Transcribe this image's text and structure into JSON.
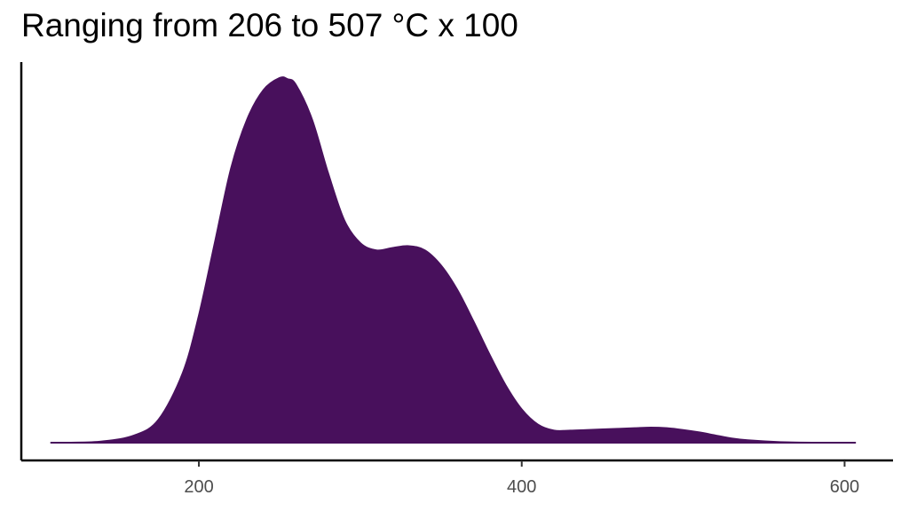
{
  "chart_data": {
    "type": "area",
    "title": "Ranging from 206 to 507 °C x 100",
    "xlabel": "",
    "ylabel": "",
    "xlim": [
      90,
      630
    ],
    "ylim": [
      0,
      0.006
    ],
    "x_ticks": [
      200,
      400,
      600
    ],
    "x_tick_labels": [
      "200",
      "400",
      "600"
    ],
    "grid": false,
    "legend": "none",
    "fill_color": "#48105c",
    "series": [
      {
        "x": [
          108,
          120,
          140,
          160,
          175,
          190,
          200,
          210,
          220,
          230,
          240,
          250,
          255,
          260,
          270,
          280,
          290,
          300,
          310,
          320,
          330,
          340,
          350,
          360,
          370,
          380,
          390,
          400,
          410,
          420,
          430,
          440,
          450,
          460,
          470,
          480,
          490,
          500,
          510,
          520,
          530,
          540,
          560,
          580,
          607
        ],
        "y": [
          0.0,
          0.0,
          2e-05,
          0.00012,
          0.00038,
          0.00115,
          0.0021,
          0.00332,
          0.00454,
          0.00535,
          0.00583,
          0.00603,
          0.00601,
          0.00592,
          0.00535,
          0.00446,
          0.00368,
          0.0033,
          0.00318,
          0.00322,
          0.00325,
          0.00318,
          0.00293,
          0.00253,
          0.00201,
          0.00146,
          0.00095,
          0.00055,
          0.0003,
          0.0002,
          0.0002,
          0.00021,
          0.00022,
          0.00023,
          0.00024,
          0.00025,
          0.00024,
          0.00021,
          0.00017,
          0.00012,
          7e-05,
          4e-05,
          1e-05,
          0.0,
          0.0
        ]
      }
    ]
  }
}
